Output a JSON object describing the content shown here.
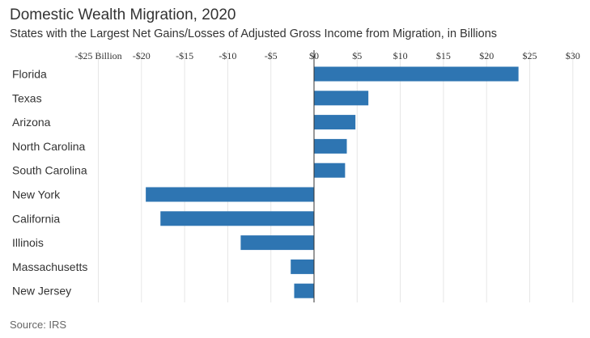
{
  "header": {
    "title": "Domestic Wealth Migration, 2020",
    "subtitle": "States with the Largest Net Gains/Losses of Adjusted Gross Income from Migration, in Billions"
  },
  "footer": {
    "source": "Source: IRS"
  },
  "chart_data": {
    "type": "bar",
    "orientation": "horizontal",
    "title": "Domestic Wealth Migration, 2020",
    "subtitle": "States with the Largest Net Gains/Losses of Adjusted Gross Income from Migration, in Billions",
    "xlabel": "",
    "ylabel": "",
    "categories": [
      "Florida",
      "Texas",
      "Arizona",
      "North Carolina",
      "South Carolina",
      "New York",
      "California",
      "Illinois",
      "Massachusetts",
      "New Jersey"
    ],
    "values": [
      23.7,
      6.3,
      4.8,
      3.8,
      3.6,
      -19.5,
      -17.8,
      -8.5,
      -2.7,
      -2.3
    ],
    "xlim": [
      -25,
      30
    ],
    "xticks": [
      -25,
      -20,
      -15,
      -10,
      -5,
      0,
      5,
      10,
      15,
      20,
      25,
      30
    ],
    "xtick_labels": [
      "-$25 Billion",
      "-$20",
      "-$15",
      "-$10",
      "-$5",
      "$0",
      "$5",
      "$10",
      "$15",
      "$20",
      "$25",
      "$30"
    ],
    "grid": true,
    "axis_position": "top",
    "bar_color": "#2e75b2",
    "grid_color": "#e6e6e6",
    "zero_line_color": "#333333"
  }
}
